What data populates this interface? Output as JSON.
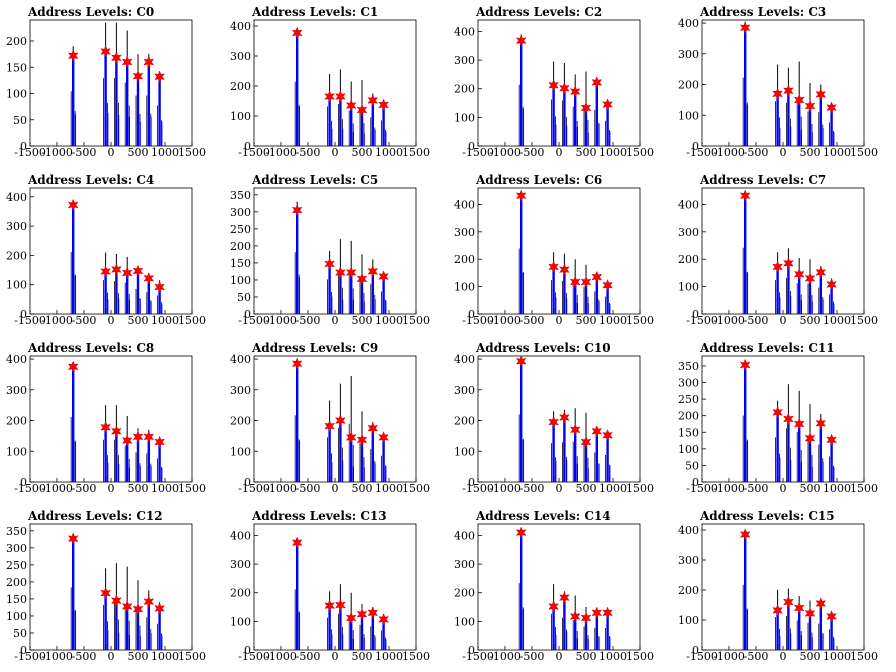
{
  "chart_data": [
    {
      "type": "bar",
      "title": "Address Levels: C0",
      "xlim": [
        -1500,
        1500
      ],
      "xticks": [
        -1500,
        -1000,
        -500,
        0,
        500,
        1000,
        1500
      ],
      "ylim": [
        0,
        240
      ],
      "yticks": [
        0,
        50,
        100,
        150,
        200
      ],
      "x": [
        -700,
        -100,
        100,
        300,
        500,
        700,
        900
      ],
      "peak_values": [
        190,
        235,
        235,
        220,
        175,
        175,
        140
      ],
      "marker_values": [
        172,
        180,
        168,
        160,
        133,
        160,
        132
      ]
    },
    {
      "type": "bar",
      "title": "Address Levels: C1",
      "xlim": [
        -1500,
        1500
      ],
      "xticks": [
        -1500,
        -1000,
        -500,
        0,
        500,
        1000,
        1500
      ],
      "ylim": [
        0,
        420
      ],
      "yticks": [
        0,
        100,
        200,
        300,
        400
      ],
      "x": [
        -700,
        -100,
        100,
        300,
        500,
        700,
        900
      ],
      "peak_values": [
        390,
        240,
        255,
        215,
        220,
        175,
        155
      ],
      "marker_values": [
        377,
        165,
        165,
        135,
        120,
        152,
        137
      ]
    },
    {
      "type": "bar",
      "title": "Address Levels: C2",
      "xlim": [
        -1500,
        1500
      ],
      "xticks": [
        -1500,
        -1000,
        -500,
        0,
        500,
        1000,
        1500
      ],
      "ylim": [
        0,
        440
      ],
      "yticks": [
        0,
        100,
        200,
        300,
        400
      ],
      "x": [
        -700,
        -100,
        100,
        300,
        500,
        700,
        900
      ],
      "peak_values": [
        390,
        295,
        290,
        250,
        260,
        230,
        160
      ],
      "marker_values": [
        368,
        212,
        202,
        190,
        133,
        222,
        145
      ]
    },
    {
      "type": "bar",
      "title": "Address Levels: C3",
      "xlim": [
        -1500,
        1500
      ],
      "xticks": [
        -1500,
        -1000,
        -500,
        0,
        500,
        1000,
        1500
      ],
      "ylim": [
        0,
        410
      ],
      "yticks": [
        0,
        100,
        200,
        300,
        400
      ],
      "x": [
        -700,
        -100,
        100,
        300,
        500,
        700,
        900
      ],
      "peak_values": [
        405,
        265,
        255,
        275,
        205,
        200,
        140
      ],
      "marker_values": [
        385,
        170,
        180,
        150,
        130,
        168,
        125
      ]
    },
    {
      "type": "bar",
      "title": "Address Levels: C4",
      "xlim": [
        -1500,
        1500
      ],
      "xticks": [
        -1500,
        -1000,
        -500,
        0,
        500,
        1000,
        1500
      ],
      "ylim": [
        0,
        430
      ],
      "yticks": [
        0,
        100,
        200,
        300,
        400
      ],
      "x": [
        -700,
        -100,
        100,
        300,
        500,
        700,
        900
      ],
      "peak_values": [
        385,
        210,
        205,
        195,
        155,
        135,
        115
      ],
      "marker_values": [
        372,
        145,
        152,
        140,
        147,
        122,
        92
      ]
    },
    {
      "type": "bar",
      "title": "Address Levels: C5",
      "xlim": [
        -1500,
        1500
      ],
      "xticks": [
        -1500,
        -1000,
        -500,
        0,
        500,
        1000,
        1500
      ],
      "ylim": [
        0,
        370
      ],
      "yticks": [
        0,
        50,
        100,
        150,
        200,
        250,
        300,
        350
      ],
      "x": [
        -700,
        -100,
        100,
        300,
        500,
        700,
        900
      ],
      "peak_values": [
        330,
        185,
        220,
        215,
        175,
        160,
        120
      ],
      "marker_values": [
        305,
        147,
        122,
        122,
        103,
        125,
        110
      ]
    },
    {
      "type": "bar",
      "title": "Address Levels: C6",
      "xlim": [
        -1500,
        1500
      ],
      "xticks": [
        -1500,
        -1000,
        -500,
        0,
        500,
        1000,
        1500
      ],
      "ylim": [
        0,
        460
      ],
      "yticks": [
        0,
        100,
        200,
        300,
        400
      ],
      "x": [
        -700,
        -100,
        100,
        300,
        500,
        700,
        900
      ],
      "peak_values": [
        435,
        225,
        220,
        200,
        180,
        150,
        115
      ],
      "marker_values": [
        432,
        172,
        162,
        117,
        117,
        135,
        105
      ]
    },
    {
      "type": "bar",
      "title": "Address Levels: C7",
      "xlim": [
        -1500,
        1500
      ],
      "xticks": [
        -1500,
        -1000,
        -500,
        0,
        500,
        1000,
        1500
      ],
      "ylim": [
        0,
        460
      ],
      "yticks": [
        0,
        100,
        200,
        300,
        400
      ],
      "x": [
        -700,
        -100,
        100,
        300,
        500,
        700,
        900
      ],
      "peak_values": [
        440,
        225,
        240,
        205,
        200,
        175,
        130
      ],
      "marker_values": [
        432,
        172,
        185,
        145,
        130,
        152,
        108
      ]
    },
    {
      "type": "bar",
      "title": "Address Levels: C8",
      "xlim": [
        -1500,
        1500
      ],
      "xticks": [
        -1500,
        -1000,
        -500,
        0,
        500,
        1000,
        1500
      ],
      "ylim": [
        0,
        410
      ],
      "yticks": [
        0,
        100,
        200,
        300,
        400
      ],
      "x": [
        -700,
        -100,
        100,
        300,
        500,
        700,
        900
      ],
      "peak_values": [
        385,
        250,
        250,
        215,
        175,
        170,
        140
      ],
      "marker_values": [
        375,
        178,
        165,
        135,
        147,
        147,
        130
      ]
    },
    {
      "type": "bar",
      "title": "Address Levels: C9",
      "xlim": [
        -1500,
        1500
      ],
      "xticks": [
        -1500,
        -1000,
        -500,
        0,
        500,
        1000,
        1500
      ],
      "ylim": [
        0,
        410
      ],
      "yticks": [
        0,
        100,
        200,
        300,
        400
      ],
      "x": [
        -700,
        -100,
        100,
        300,
        500,
        700,
        900
      ],
      "peak_values": [
        395,
        265,
        320,
        345,
        230,
        195,
        155
      ],
      "marker_values": [
        385,
        182,
        200,
        145,
        137,
        175,
        145
      ]
    },
    {
      "type": "bar",
      "title": "Address Levels: C10",
      "xlim": [
        -1500,
        1500
      ],
      "xticks": [
        -1500,
        -1000,
        -500,
        0,
        500,
        1000,
        1500
      ],
      "ylim": [
        0,
        410
      ],
      "yticks": [
        0,
        100,
        200,
        300,
        400
      ],
      "x": [
        -700,
        -100,
        100,
        300,
        500,
        700,
        900
      ],
      "peak_values": [
        400,
        230,
        235,
        240,
        225,
        175,
        160
      ],
      "marker_values": [
        393,
        195,
        210,
        170,
        130,
        165,
        152
      ]
    },
    {
      "type": "bar",
      "title": "Address Levels: C11",
      "xlim": [
        -1500,
        1500
      ],
      "xticks": [
        -1500,
        -1000,
        -500,
        0,
        500,
        1000,
        1500
      ],
      "ylim": [
        0,
        380
      ],
      "yticks": [
        0,
        50,
        100,
        150,
        200,
        250,
        300,
        350
      ],
      "x": [
        -700,
        -100,
        100,
        300,
        500,
        700,
        900
      ],
      "peak_values": [
        365,
        245,
        295,
        275,
        235,
        205,
        140
      ],
      "marker_values": [
        353,
        210,
        190,
        175,
        132,
        177,
        127
      ]
    },
    {
      "type": "bar",
      "title": "Address Levels: C12",
      "xlim": [
        -1500,
        1500
      ],
      "xticks": [
        -1500,
        -1000,
        -500,
        0,
        500,
        1000,
        1500
      ],
      "ylim": [
        0,
        370
      ],
      "yticks": [
        0,
        50,
        100,
        150,
        200,
        250,
        300,
        350
      ],
      "x": [
        -700,
        -100,
        100,
        300,
        500,
        700,
        900
      ],
      "peak_values": [
        335,
        240,
        255,
        245,
        205,
        175,
        140
      ],
      "marker_values": [
        327,
        167,
        145,
        128,
        120,
        142,
        122
      ]
    },
    {
      "type": "bar",
      "title": "Address Levels: C13",
      "xlim": [
        -1500,
        1500
      ],
      "xticks": [
        -1500,
        -1000,
        -500,
        0,
        500,
        1000,
        1500
      ],
      "ylim": [
        0,
        440
      ],
      "yticks": [
        0,
        100,
        200,
        300,
        400
      ],
      "x": [
        -700,
        -100,
        100,
        300,
        500,
        700,
        900
      ],
      "peak_values": [
        385,
        205,
        230,
        200,
        160,
        150,
        125
      ],
      "marker_values": [
        375,
        155,
        157,
        112,
        125,
        130,
        107
      ]
    },
    {
      "type": "bar",
      "title": "Address Levels: C14",
      "xlim": [
        -1500,
        1500
      ],
      "xticks": [
        -1500,
        -1000,
        -500,
        0,
        500,
        1000,
        1500
      ],
      "ylim": [
        0,
        440
      ],
      "yticks": [
        0,
        100,
        200,
        300,
        400
      ],
      "x": [
        -700,
        -100,
        100,
        300,
        500,
        700,
        900
      ],
      "peak_values": [
        425,
        230,
        205,
        190,
        150,
        140,
        140
      ],
      "marker_values": [
        410,
        152,
        183,
        117,
        112,
        130,
        130
      ]
    },
    {
      "type": "bar",
      "title": "Address Levels: C15",
      "xlim": [
        -1500,
        1500
      ],
      "xticks": [
        -1500,
        -1000,
        -500,
        0,
        500,
        1000,
        1500
      ],
      "ylim": [
        0,
        420
      ],
      "yticks": [
        0,
        100,
        200,
        300,
        400
      ],
      "x": [
        -700,
        -100,
        100,
        300,
        500,
        700,
        900
      ],
      "peak_values": [
        395,
        200,
        205,
        180,
        165,
        160,
        125
      ],
      "marker_values": [
        385,
        132,
        160,
        140,
        122,
        155,
        112
      ]
    }
  ],
  "colors": {
    "main_bar": "#0000ff",
    "spike": "#000000",
    "marker": "#ff0000",
    "frame": "#000000"
  }
}
